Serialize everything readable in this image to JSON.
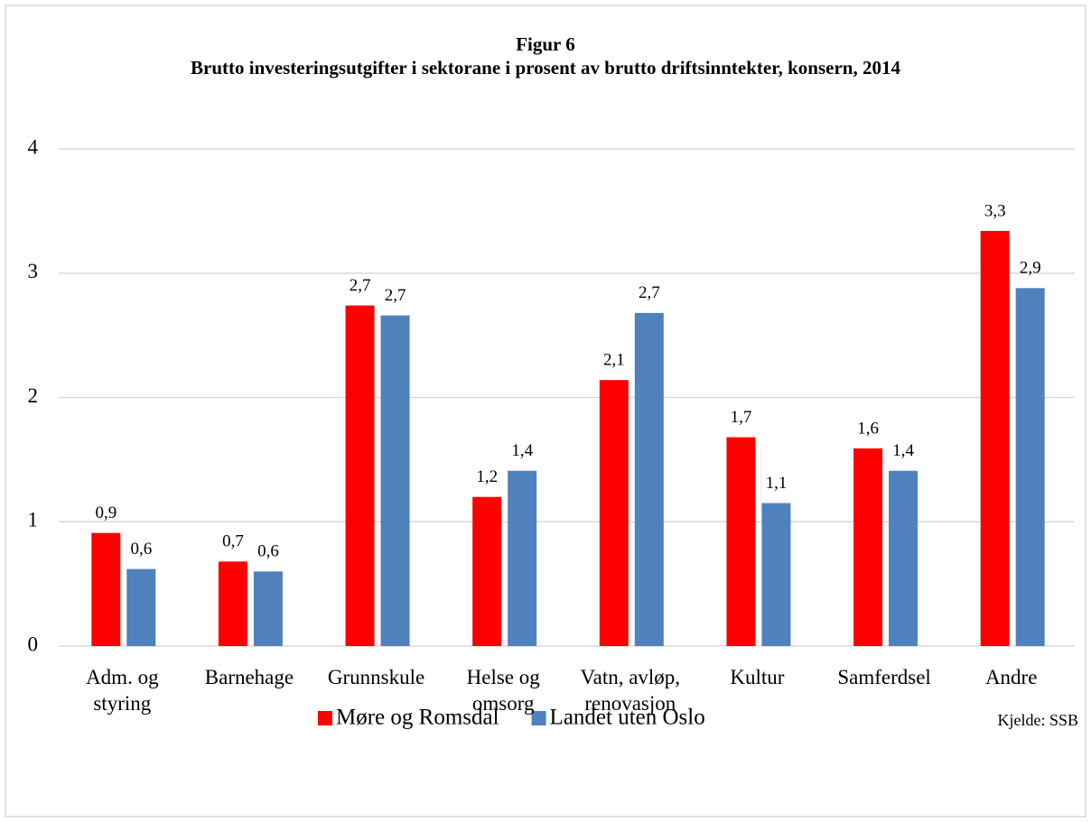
{
  "chart_data": {
    "type": "bar",
    "title": "Figur 6",
    "subtitle": "Brutto investeringsutgifter i sektorane i prosent av brutto driftsinntekter, konsern, 2014",
    "categories": [
      "Adm. og styring",
      "Barnehage",
      "Grunnskule",
      "Helse og omsorg",
      "Vatn, avløp, renovasjon",
      "Kultur",
      "Samferdsel",
      "Andre"
    ],
    "series": [
      {
        "name": "Møre og Romsdal",
        "color": "#ff0000",
        "values": [
          0.91,
          0.68,
          2.74,
          1.2,
          2.14,
          1.68,
          1.59,
          3.34
        ],
        "value_labels": [
          "0,9",
          "0,7",
          "2,7",
          "1,2",
          "2,1",
          "1,7",
          "1,6",
          "3,3"
        ]
      },
      {
        "name": "Landet uten Oslo",
        "color": "#4f81bd",
        "values": [
          0.62,
          0.6,
          2.66,
          1.41,
          2.68,
          1.15,
          1.41,
          2.88
        ],
        "value_labels": [
          "0,6",
          "0,6",
          "2,7",
          "1,4",
          "2,7",
          "1,1",
          "1,4",
          "2,9"
        ]
      }
    ],
    "ylim": [
      0,
      4
    ],
    "yticks": [
      0,
      1,
      2,
      3,
      4
    ],
    "grid": true,
    "legend": "bottom",
    "source": "Kjelde: SSB"
  }
}
